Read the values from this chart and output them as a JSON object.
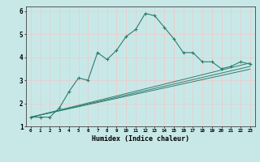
{
  "xlabel": "Humidex (Indice chaleur)",
  "bg_color": "#c8e8e8",
  "plot_bg_color": "#c8e8e8",
  "grid_color": "#f0c8c8",
  "line_color": "#2d7d6e",
  "xlim": [
    -0.5,
    23.5
  ],
  "ylim": [
    1,
    6.2
  ],
  "x_ticks": [
    0,
    1,
    2,
    3,
    4,
    5,
    6,
    7,
    8,
    9,
    10,
    11,
    12,
    13,
    14,
    15,
    16,
    17,
    18,
    19,
    20,
    21,
    22,
    23
  ],
  "y_ticks": [
    1,
    2,
    3,
    4,
    5,
    6
  ],
  "line1_x": [
    0,
    1,
    2,
    3,
    4,
    5,
    6,
    7,
    8,
    9,
    10,
    11,
    12,
    13,
    14,
    15,
    16,
    17,
    18,
    19,
    20,
    21,
    22,
    23
  ],
  "line1_y": [
    1.4,
    1.4,
    1.4,
    1.8,
    2.5,
    3.1,
    3.0,
    4.2,
    3.9,
    4.3,
    4.9,
    5.2,
    5.9,
    5.8,
    5.3,
    4.8,
    4.2,
    4.2,
    3.8,
    3.8,
    3.5,
    3.6,
    3.8,
    3.7
  ],
  "line2_x": [
    0,
    23
  ],
  "line2_y": [
    1.4,
    3.75
  ],
  "line3_x": [
    0,
    23
  ],
  "line3_y": [
    1.4,
    3.6
  ],
  "line4_x": [
    0,
    23
  ],
  "line4_y": [
    1.4,
    3.48
  ]
}
